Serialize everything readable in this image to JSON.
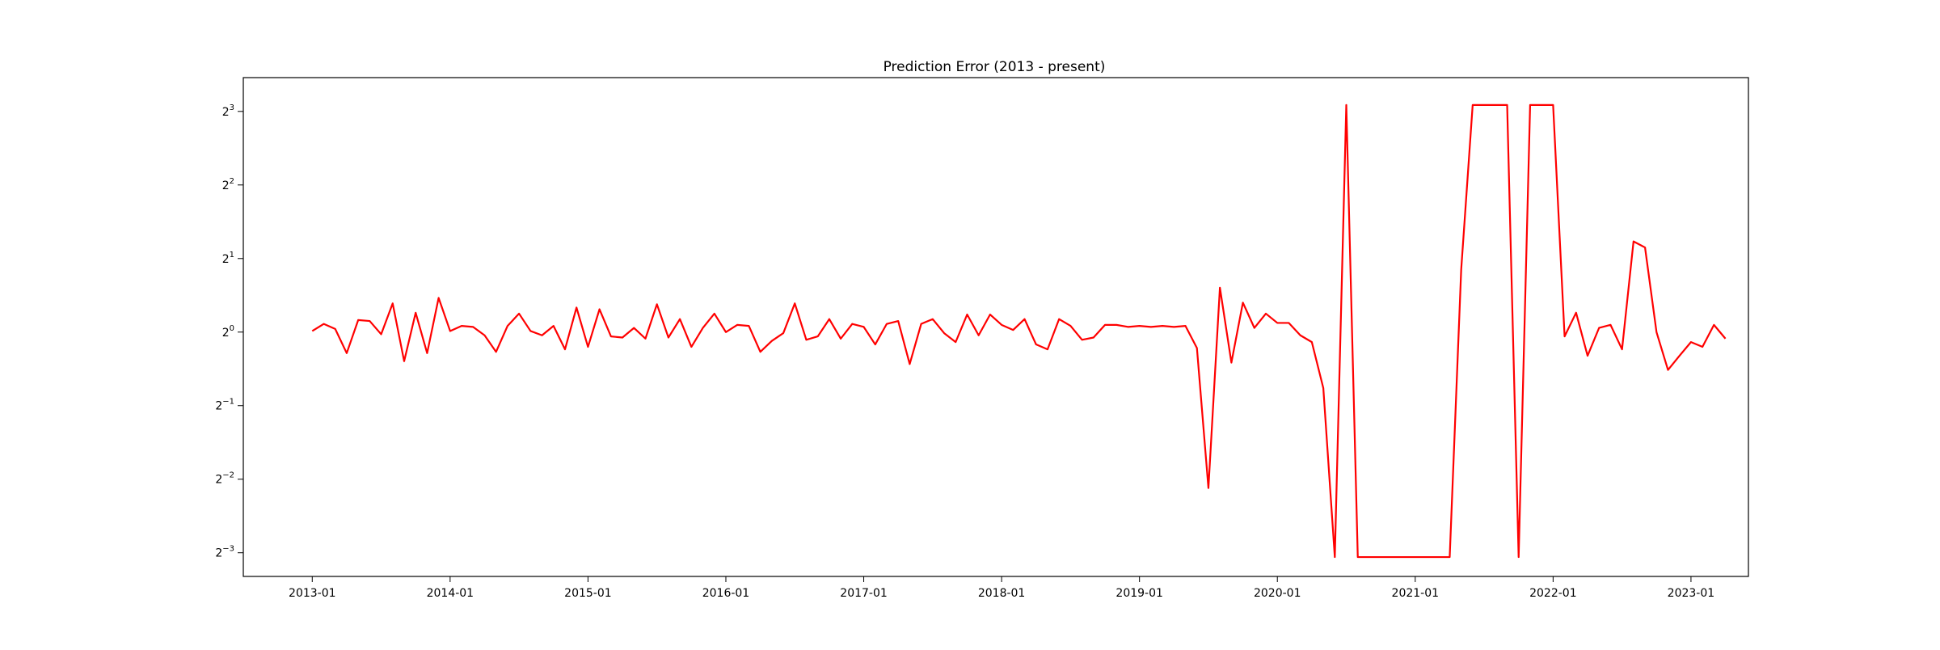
{
  "chart_data": {
    "type": "line",
    "title": "Prediction Error (2013 - present)",
    "xlabel": "",
    "ylabel": "",
    "y_scale": "log2",
    "grid": false,
    "legend": "none",
    "xlim": [
      "2012-07",
      "2023-06"
    ],
    "ylim": [
      0.1,
      11.0
    ],
    "x_ticks": [
      "2013-01",
      "2014-01",
      "2015-01",
      "2016-01",
      "2017-01",
      "2018-01",
      "2019-01",
      "2020-01",
      "2021-01",
      "2022-01",
      "2023-01"
    ],
    "y_ticks": [
      {
        "value": 0.125,
        "base": "2",
        "exp": "−3"
      },
      {
        "value": 0.25,
        "base": "2",
        "exp": "−2"
      },
      {
        "value": 0.5,
        "base": "2",
        "exp": "−1"
      },
      {
        "value": 1,
        "base": "2",
        "exp": "0"
      },
      {
        "value": 2,
        "base": "2",
        "exp": "1"
      },
      {
        "value": 4,
        "base": "2",
        "exp": "2"
      },
      {
        "value": 8,
        "base": "2",
        "exp": "3"
      }
    ],
    "series": [
      {
        "color": "#ff0000",
        "start": "2013-01",
        "values": [
          1.01,
          1.08,
          1.03,
          0.82,
          1.12,
          1.11,
          0.98,
          1.31,
          0.76,
          1.2,
          0.82,
          1.38,
          1.01,
          1.06,
          1.05,
          0.97,
          0.83,
          1.06,
          1.19,
          1.01,
          0.97,
          1.06,
          0.85,
          1.26,
          0.87,
          1.24,
          0.96,
          0.95,
          1.04,
          0.94,
          1.3,
          0.95,
          1.13,
          0.87,
          1.04,
          1.19,
          1.0,
          1.07,
          1.06,
          0.83,
          0.92,
          0.99,
          1.31,
          0.93,
          0.96,
          1.13,
          0.94,
          1.08,
          1.05,
          0.89,
          1.08,
          1.11,
          0.74,
          1.08,
          1.13,
          0.99,
          0.91,
          1.18,
          0.97,
          1.18,
          1.07,
          1.02,
          1.13,
          0.89,
          0.85,
          1.13,
          1.06,
          0.93,
          0.95,
          1.07,
          1.07,
          1.05,
          1.06,
          1.05,
          1.06,
          1.05,
          1.06,
          0.86,
          0.23,
          1.52,
          0.75,
          1.32,
          1.04,
          1.19,
          1.09,
          1.09,
          0.97,
          0.91,
          0.59,
          0.12,
          8.5,
          0.12,
          0.12,
          0.12,
          0.12,
          0.12,
          0.12,
          0.12,
          0.12,
          0.12,
          1.8,
          8.5,
          8.5,
          8.5,
          8.5,
          0.12,
          8.5,
          8.5,
          8.5,
          0.96,
          1.2,
          0.8,
          1.04,
          1.07,
          0.85,
          2.35,
          2.22,
          1.0,
          0.7,
          0.8,
          0.91,
          0.87,
          1.07,
          0.94
        ]
      }
    ]
  }
}
